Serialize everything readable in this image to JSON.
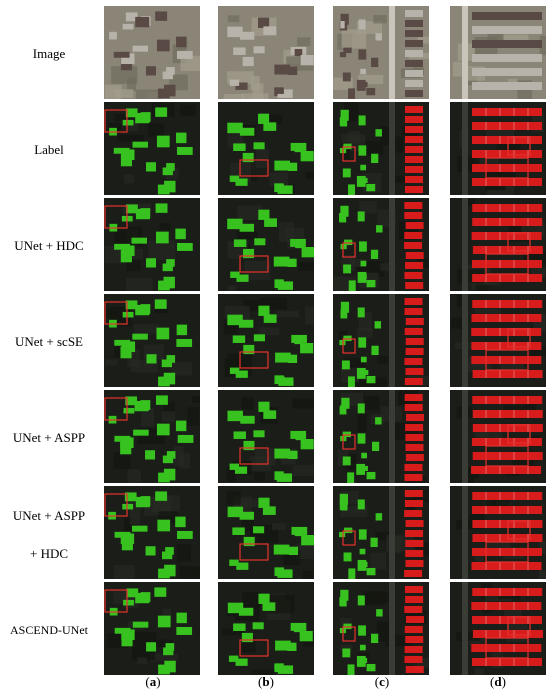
{
  "rows": [
    {
      "label": "Image"
    },
    {
      "label": "Label"
    },
    {
      "label": "UNet + HDC"
    },
    {
      "label": "UNet + scSE"
    },
    {
      "label": "UNet + ASPP"
    },
    {
      "label_line1": "UNet + ASPP",
      "label_line2": "+ HDC"
    },
    {
      "label": "ASCEND-UNet"
    }
  ],
  "columns": [
    {
      "open": "(",
      "letter": "a",
      "close": ")"
    },
    {
      "open": "(",
      "letter": "b",
      "close": ")"
    },
    {
      "open": "(",
      "letter": "c",
      "close": ")"
    },
    {
      "open": "(",
      "letter": "d",
      "close": ")"
    }
  ],
  "colors": {
    "segmentation_green": "#37c21f",
    "segmentation_red": "#d81c1c",
    "highlight_box": "#e5322d",
    "background_dark": "#1a1d18"
  }
}
